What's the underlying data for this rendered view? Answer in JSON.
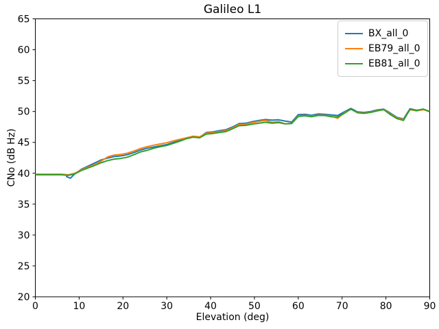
{
  "chart_data": {
    "type": "line",
    "title": "Galileo L1",
    "xlabel": "Elevation (deg)",
    "ylabel": "CNo (dB Hz)",
    "xlim": [
      0,
      90
    ],
    "ylim": [
      20,
      65
    ],
    "xticks": [
      0,
      10,
      20,
      30,
      40,
      50,
      60,
      70,
      80,
      90
    ],
    "yticks": [
      20,
      25,
      30,
      35,
      40,
      45,
      50,
      55,
      60,
      65
    ],
    "grid": false,
    "legend_position": "upper right",
    "axis_color": "#000000",
    "series": [
      {
        "name": "BX_all_0",
        "color": "#1f77b4",
        "x": [
          7,
          8,
          9,
          10.5,
          12,
          13.5,
          15,
          16.5,
          18,
          19.5,
          21,
          22.5,
          24,
          25.5,
          27,
          28.5,
          30,
          31.5,
          33,
          34.5,
          36,
          37.5,
          39,
          40.5,
          42,
          43.5,
          45,
          46.5,
          48,
          49.5,
          51,
          52.5,
          54,
          55.5,
          57,
          58.5,
          60,
          61.5,
          63,
          64.5,
          66,
          67.5,
          69,
          70.5,
          72,
          73.5,
          75,
          76.5,
          78,
          79.5,
          81,
          82.5,
          84,
          85.5,
          87,
          88.5,
          90
        ],
        "y": [
          39.5,
          39.2,
          39.9,
          40.65,
          41.15,
          41.65,
          42.15,
          42.45,
          42.7,
          42.8,
          43.0,
          43.35,
          43.75,
          44.05,
          44.25,
          44.45,
          44.65,
          45.0,
          45.3,
          45.7,
          45.95,
          45.85,
          46.6,
          46.7,
          46.9,
          47.05,
          47.5,
          48.05,
          48.1,
          48.35,
          48.55,
          48.7,
          48.6,
          48.65,
          48.45,
          48.3,
          49.5,
          49.55,
          49.4,
          49.6,
          49.55,
          49.45,
          49.35,
          49.95,
          50.5,
          49.95,
          49.85,
          50.0,
          50.25,
          50.4,
          49.75,
          49.05,
          48.8,
          50.45,
          50.2,
          50.35,
          49.95
        ]
      },
      {
        "name": "EB79_all_0",
        "color": "#ff7f0e",
        "x": [
          0,
          1.5,
          3,
          4.5,
          6,
          7.5,
          9,
          10.5,
          12,
          13.5,
          15,
          16.5,
          18,
          19.5,
          21,
          22.5,
          24,
          25.5,
          27,
          28.5,
          30,
          31.5,
          33,
          34.5,
          36,
          37.5,
          39,
          40.5,
          42,
          43.5,
          45,
          46.5,
          48,
          49.5,
          51,
          52.5,
          54,
          55.5,
          57,
          58.5,
          60,
          61.5,
          63,
          64.5,
          66,
          67.5,
          69,
          70.5,
          72,
          73.5,
          75,
          76.5,
          78,
          79.5,
          81,
          82.5,
          84,
          85.5,
          87,
          88.5,
          90
        ],
        "y": [
          39.85,
          39.85,
          39.85,
          39.85,
          39.85,
          39.75,
          40.0,
          40.55,
          41.0,
          41.4,
          41.95,
          42.65,
          42.95,
          43.05,
          43.25,
          43.6,
          44.0,
          44.3,
          44.55,
          44.75,
          44.95,
          45.25,
          45.5,
          45.75,
          46.0,
          45.9,
          46.5,
          46.6,
          46.75,
          46.9,
          47.35,
          47.9,
          47.95,
          48.2,
          48.4,
          48.55,
          48.25,
          48.35,
          48.0,
          48.1,
          49.3,
          49.35,
          49.25,
          49.4,
          49.4,
          49.25,
          48.9,
          49.8,
          50.35,
          49.85,
          49.75,
          49.9,
          50.15,
          50.35,
          49.6,
          48.95,
          48.7,
          50.3,
          50.1,
          50.3,
          50.05
        ]
      },
      {
        "name": "EB81_all_0",
        "color": "#2ca02c",
        "x": [
          0,
          1.5,
          3,
          4.5,
          6,
          7.5,
          9,
          10.5,
          12,
          13.5,
          15,
          16.5,
          18,
          19.5,
          21,
          22.5,
          24,
          25.5,
          27,
          28.5,
          30,
          31.5,
          33,
          34.5,
          36,
          37.5,
          39,
          40.5,
          42,
          43.5,
          45,
          46.5,
          48,
          49.5,
          51,
          52.5,
          54,
          55.5,
          57,
          58.5,
          60,
          61.5,
          63,
          64.5,
          66,
          67.5,
          69,
          70.5,
          72,
          73.5,
          75,
          76.5,
          78,
          79.5,
          81,
          82.5,
          84,
          85.5,
          87,
          88.5,
          90
        ],
        "y": [
          39.75,
          39.75,
          39.75,
          39.75,
          39.75,
          39.65,
          39.9,
          40.45,
          40.85,
          41.25,
          41.7,
          42.05,
          42.3,
          42.4,
          42.6,
          43.0,
          43.45,
          43.7,
          44.05,
          44.3,
          44.5,
          44.85,
          45.2,
          45.6,
          45.85,
          45.75,
          46.35,
          46.45,
          46.6,
          46.75,
          47.2,
          47.7,
          47.75,
          47.95,
          48.1,
          48.25,
          48.1,
          48.2,
          48.0,
          48.05,
          49.2,
          49.3,
          49.15,
          49.35,
          49.35,
          49.15,
          49.1,
          49.7,
          50.4,
          49.8,
          49.7,
          49.85,
          50.1,
          50.3,
          49.5,
          48.85,
          48.55,
          50.4,
          50.15,
          50.4,
          50.0
        ]
      }
    ]
  }
}
